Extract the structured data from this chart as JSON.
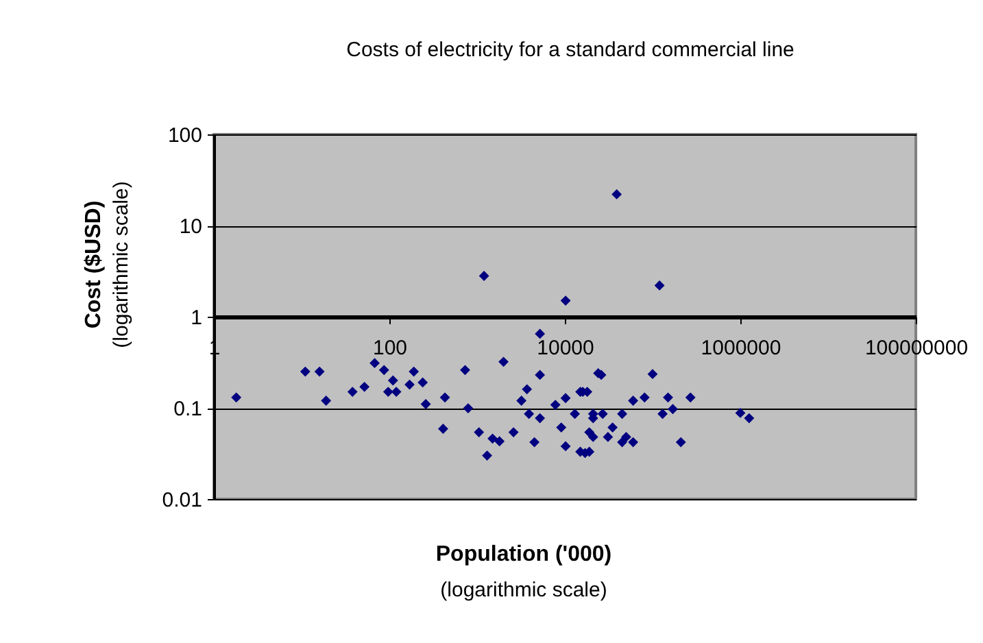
{
  "chart_data": {
    "type": "scatter",
    "title": "Costs of electricity for a standard commercial  line",
    "xlabel": "Population ('000)",
    "ylabel": "Cost ($USD)",
    "annotations": [
      "(logarithmic scale)",
      "(logarithmic scale)"
    ],
    "log": "xy",
    "xlim": [
      1,
      100000000
    ],
    "xticks": [
      1,
      100,
      10000,
      1000000,
      100000000
    ],
    "ylim": [
      0.01,
      100
    ],
    "yticks": [
      0.01,
      0.1,
      1,
      10,
      100
    ],
    "grid": "y",
    "marker": "diamond",
    "series": [
      {
        "color": "#000080",
        "x": [
          1.8,
          11,
          16,
          19,
          38,
          52,
          68,
          87,
          110,
          97,
          120,
          190,
          170,
          240,
          260,
          430,
          410,
          730,
          790,
          1050,
          1200,
          1300,
          1500,
          1800,
          2000,
          2600,
          3200,
          3700,
          3900,
          5200,
          4500,
          5200,
          5200,
          10200,
          7800,
          10200,
          9100,
          10200,
          15000,
          18000,
          13000,
          15000,
          19000,
          24000,
          21000,
          21000,
          39000,
          120000,
          26000,
          16000,
          100000,
          60000,
          81000,
          150000,
          270000,
          130000,
          170000,
          210000,
          1000000,
          1260000,
          27000,
          45000,
          50000,
          35000,
          19000,
          45000,
          17000,
          21000,
          60000,
          31000
        ],
        "values": [
          0.13,
          0.25,
          0.25,
          0.12,
          0.15,
          0.17,
          0.31,
          0.26,
          0.2,
          0.15,
          0.15,
          0.25,
          0.18,
          0.19,
          0.11,
          0.13,
          0.059,
          0.26,
          0.099,
          0.054,
          2.8,
          0.03,
          0.046,
          0.043,
          0.32,
          0.054,
          0.12,
          0.16,
          0.086,
          0.077,
          0.042,
          0.23,
          0.65,
          1.5,
          0.108,
          0.128,
          0.061,
          0.038,
          0.15,
          0.15,
          0.086,
          0.033,
          0.033,
          0.24,
          0.077,
          0.048,
          22,
          2.2,
          0.23,
          0.15,
          0.235,
          0.12,
          0.13,
          0.13,
          0.13,
          0.086,
          0.097,
          0.042,
          0.088,
          0.077,
          0.086,
          0.086,
          0.048,
          0.061,
          0.054,
          0.042,
          0.032,
          0.086,
          0.042,
          0.048
        ]
      }
    ]
  }
}
